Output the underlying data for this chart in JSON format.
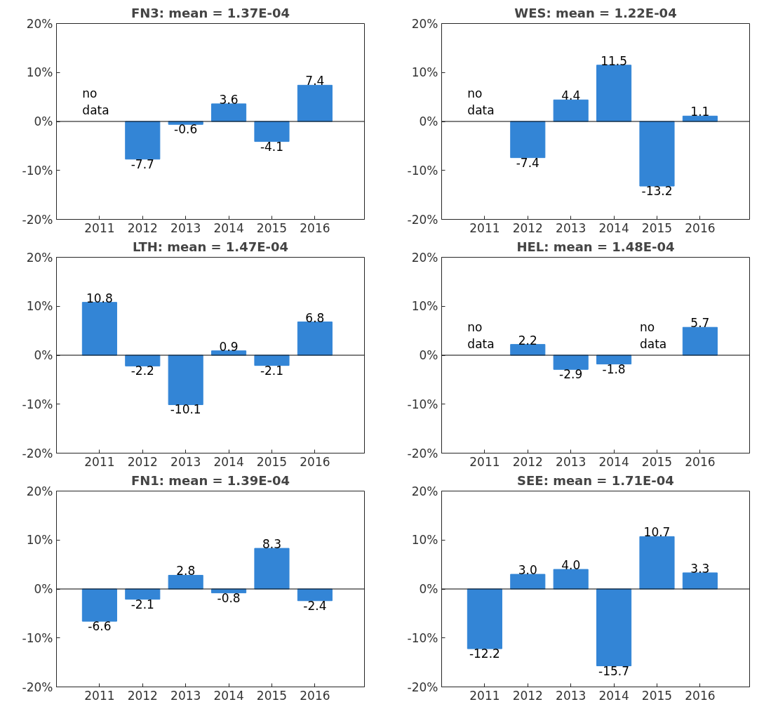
{
  "chart_data": [
    {
      "type": "bar",
      "title": "FN3: mean = 1.37E-04",
      "categories": [
        "2011",
        "2012",
        "2013",
        "2014",
        "2015",
        "2016"
      ],
      "values": [
        null,
        -7.7,
        -0.6,
        3.6,
        -4.1,
        7.4
      ],
      "value_labels": [
        null,
        "-7.7",
        "-0.6",
        "3.6",
        "-4.1",
        "7.4"
      ],
      "color": "#3385d6",
      "ylim": [
        -20,
        20
      ],
      "yticks": [
        {
          "value": -20,
          "label": "-20%"
        },
        {
          "value": -10,
          "label": "-10%"
        },
        {
          "value": 0,
          "label": "0%"
        },
        {
          "value": 10,
          "label": "10%"
        },
        {
          "value": 20,
          "label": "20%"
        }
      ],
      "grid": false,
      "ref_lines": [
        {
          "axis": "y",
          "value": 0,
          "color": "#000000"
        }
      ],
      "annotations": [
        "no\ndata"
      ]
    },
    {
      "type": "bar",
      "title": "WES: mean = 1.22E-04",
      "categories": [
        "2011",
        "2012",
        "2013",
        "2014",
        "2015",
        "2016"
      ],
      "values": [
        null,
        -7.4,
        4.4,
        11.5,
        -13.2,
        1.1
      ],
      "value_labels": [
        null,
        "-7.4",
        "4.4",
        "11.5",
        "-13.2",
        "1.1"
      ],
      "color": "#3385d6",
      "ylim": [
        -20,
        20
      ],
      "yticks": [
        {
          "value": -20,
          "label": "-20%"
        },
        {
          "value": -10,
          "label": "-10%"
        },
        {
          "value": 0,
          "label": "0%"
        },
        {
          "value": 10,
          "label": "10%"
        },
        {
          "value": 20,
          "label": "20%"
        }
      ],
      "grid": false,
      "ref_lines": [
        {
          "axis": "y",
          "value": 0,
          "color": "#000000"
        }
      ],
      "annotations": [
        "no\ndata"
      ]
    },
    {
      "type": "bar",
      "title": "LTH: mean = 1.47E-04",
      "categories": [
        "2011",
        "2012",
        "2013",
        "2014",
        "2015",
        "2016"
      ],
      "values": [
        10.8,
        -2.2,
        -10.1,
        0.9,
        -2.1,
        6.8
      ],
      "value_labels": [
        "10.8",
        "-2.2",
        "-10.1",
        "0.9",
        "-2.1",
        "6.8"
      ],
      "color": "#3385d6",
      "ylim": [
        -20,
        20
      ],
      "yticks": [
        {
          "value": -20,
          "label": "-20%"
        },
        {
          "value": -10,
          "label": "-10%"
        },
        {
          "value": 0,
          "label": "0%"
        },
        {
          "value": 10,
          "label": "10%"
        },
        {
          "value": 20,
          "label": "20%"
        }
      ],
      "grid": false,
      "ref_lines": [
        {
          "axis": "y",
          "value": 0,
          "color": "#000000"
        }
      ]
    },
    {
      "type": "bar",
      "title": "HEL: mean = 1.48E-04",
      "categories": [
        "2011",
        "2012",
        "2013",
        "2014",
        "2015",
        "2016"
      ],
      "values": [
        null,
        2.2,
        -2.9,
        -1.8,
        null,
        5.7
      ],
      "value_labels": [
        null,
        "2.2",
        "-2.9",
        "-1.8",
        null,
        "5.7"
      ],
      "color": "#3385d6",
      "ylim": [
        -20,
        20
      ],
      "yticks": [
        {
          "value": -20,
          "label": "-20%"
        },
        {
          "value": -10,
          "label": "-10%"
        },
        {
          "value": 0,
          "label": "0%"
        },
        {
          "value": 10,
          "label": "10%"
        },
        {
          "value": 20,
          "label": "20%"
        }
      ],
      "grid": false,
      "ref_lines": [
        {
          "axis": "y",
          "value": 0,
          "color": "#000000"
        }
      ],
      "annotations": [
        "no\ndata",
        "no\ndata"
      ]
    },
    {
      "type": "bar",
      "title": "FN1: mean = 1.39E-04",
      "categories": [
        "2011",
        "2012",
        "2013",
        "2014",
        "2015",
        "2016"
      ],
      "values": [
        -6.6,
        -2.1,
        2.8,
        -0.8,
        8.3,
        -2.4
      ],
      "value_labels": [
        "-6.6",
        "-2.1",
        "2.8",
        "-0.8",
        "8.3",
        "-2.4"
      ],
      "color": "#3385d6",
      "ylim": [
        -20,
        20
      ],
      "yticks": [
        {
          "value": -20,
          "label": "-20%"
        },
        {
          "value": -10,
          "label": "-10%"
        },
        {
          "value": 0,
          "label": "0%"
        },
        {
          "value": 10,
          "label": "10%"
        },
        {
          "value": 20,
          "label": "20%"
        }
      ],
      "grid": false,
      "ref_lines": [
        {
          "axis": "y",
          "value": 0,
          "color": "#000000"
        }
      ]
    },
    {
      "type": "bar",
      "title": "SEE: mean = 1.71E-04",
      "categories": [
        "2011",
        "2012",
        "2013",
        "2014",
        "2015",
        "2016"
      ],
      "values": [
        -12.2,
        3.0,
        4.0,
        -15.7,
        10.7,
        3.3
      ],
      "value_labels": [
        "-12.2",
        "3.0",
        "4.0",
        "-15.7",
        "10.7",
        "3.3"
      ],
      "color": "#3385d6",
      "ylim": [
        -20,
        20
      ],
      "yticks": [
        {
          "value": -20,
          "label": "-20%"
        },
        {
          "value": -10,
          "label": "-10%"
        },
        {
          "value": 0,
          "label": "0%"
        },
        {
          "value": 10,
          "label": "10%"
        },
        {
          "value": 20,
          "label": "20%"
        }
      ],
      "grid": false,
      "ref_lines": [
        {
          "axis": "y",
          "value": 0,
          "color": "#000000"
        }
      ]
    }
  ]
}
